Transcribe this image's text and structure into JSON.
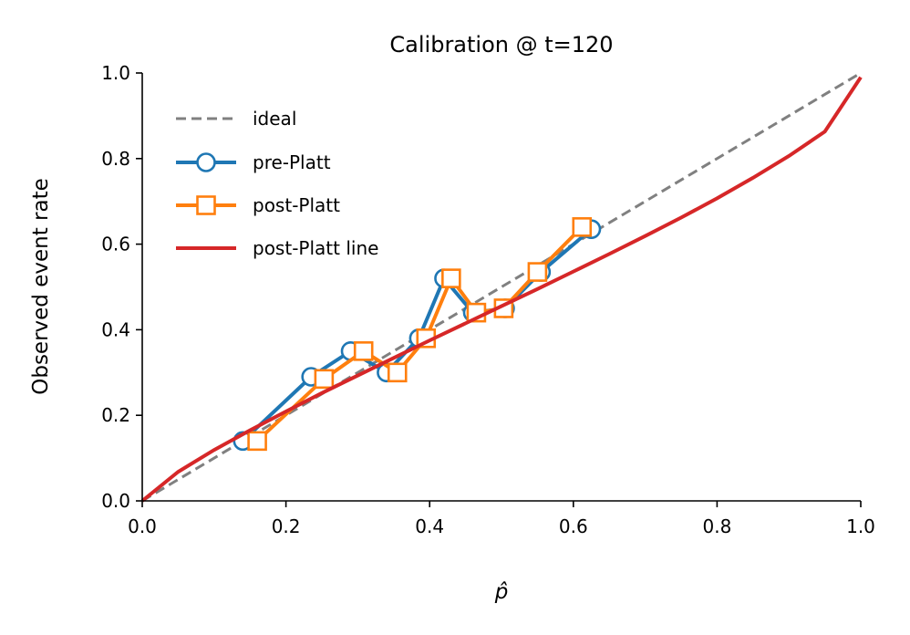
{
  "chart_data": {
    "type": "line",
    "title": "Calibration @ t=120",
    "xlabel": "p̂",
    "ylabel": "Observed event rate",
    "xlim": [
      0.0,
      1.0
    ],
    "ylim": [
      0.0,
      1.0
    ],
    "xticks": [
      "0.0",
      "0.2",
      "0.4",
      "0.6",
      "0.8",
      "1.0"
    ],
    "yticks": [
      "0.0",
      "0.2",
      "0.4",
      "0.6",
      "0.8",
      "1.0"
    ],
    "grid": false,
    "legend_position": "upper-left",
    "series": [
      {
        "name": "ideal",
        "style": "dashed",
        "color": "#808080",
        "x": [
          0.0,
          1.0
        ],
        "y": [
          0.0,
          1.0
        ]
      },
      {
        "name": "pre-Platt",
        "style": "line-circle",
        "color": "#1f77b4",
        "x": [
          0.14,
          0.235,
          0.29,
          0.34,
          0.385,
          0.42,
          0.46,
          0.505,
          0.555,
          0.625
        ],
        "y": [
          0.14,
          0.29,
          0.35,
          0.3,
          0.38,
          0.52,
          0.44,
          0.45,
          0.535,
          0.635
        ]
      },
      {
        "name": "post-Platt",
        "style": "line-square",
        "color": "#ff7f0e",
        "x": [
          0.16,
          0.253,
          0.308,
          0.355,
          0.395,
          0.43,
          0.465,
          0.503,
          0.55,
          0.612
        ],
        "y": [
          0.14,
          0.285,
          0.35,
          0.3,
          0.38,
          0.52,
          0.44,
          0.45,
          0.535,
          0.64
        ]
      },
      {
        "name": "post-Platt line",
        "style": "solid",
        "color": "#d62728",
        "x": [
          0.0,
          0.05,
          0.1,
          0.15,
          0.2,
          0.25,
          0.3,
          0.35,
          0.4,
          0.45,
          0.5,
          0.55,
          0.6,
          0.65,
          0.7,
          0.75,
          0.8,
          0.85,
          0.9,
          0.95,
          1.0
        ],
        "y": [
          0.0,
          0.068,
          0.119,
          0.165,
          0.209,
          0.252,
          0.293,
          0.334,
          0.375,
          0.415,
          0.455,
          0.495,
          0.536,
          0.577,
          0.619,
          0.662,
          0.707,
          0.755,
          0.806,
          0.863,
          0.99
        ]
      }
    ]
  }
}
